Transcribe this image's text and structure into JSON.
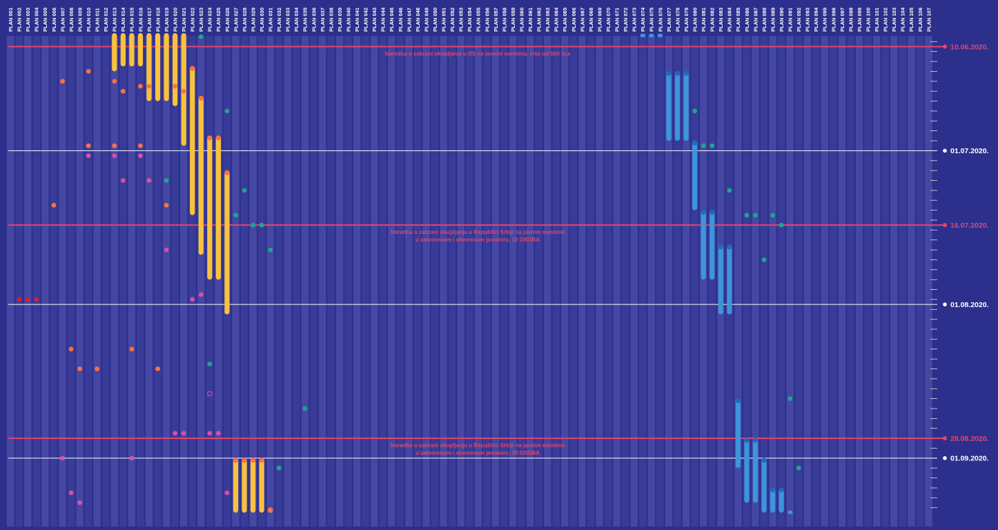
{
  "chart_data": {
    "type": "timeline",
    "plans": [
      "PLAN 001",
      "PLAN 002",
      "PLAN 003",
      "PLAN 004",
      "PLAN 005",
      "PLAN 006",
      "PLAN 007",
      "PLAN 008",
      "PLAN 009",
      "PLAN 010",
      "PLAN 011",
      "PLAN 012",
      "PLAN 013",
      "PLAN 014",
      "PLAN 015",
      "PLAN 016",
      "PLAN 017",
      "PLAN 018",
      "PLAN 019",
      "PLAN 020",
      "PLAN 021",
      "PLAN 022",
      "PLAN 023",
      "PLAN 024",
      "PLAN 025",
      "PLAN 026",
      "PLAN 027",
      "PLAN 028",
      "PLAN 029",
      "PLAN 030",
      "PLAN 031",
      "PLAN 032",
      "PLAN 033",
      "PLAN 034",
      "PLAN 035",
      "PLAN 036",
      "PLAN 037",
      "PLAN 038",
      "PLAN 039",
      "PLAN 040",
      "PLAN 041",
      "PLAN 042",
      "PLAN 043",
      "PLAN 044",
      "PLAN 045",
      "PLAN 046",
      "PLAN 047",
      "PLAN 048",
      "PLAN 049",
      "PLAN 050",
      "PLAN 051",
      "PLAN 052",
      "PLAN 053",
      "PLAN 054",
      "PLAN 055",
      "PLAN 056",
      "PLAN 057",
      "PLAN 058",
      "PLAN 059",
      "PLAN 060",
      "PLAN 061",
      "PLAN 062",
      "PLAN 063",
      "PLAN 064",
      "PLAN 065",
      "PLAN 066",
      "PLAN 067",
      "PLAN 068",
      "PLAN 069",
      "PLAN 070",
      "PLAN 071",
      "PLAN 072",
      "PLAN 073",
      "PLAN 074",
      "PLAN 075",
      "PLAN 076",
      "PLAN 077",
      "PLAN 078",
      "PLAN 079",
      "PLAN 080",
      "PLAN 081",
      "PLAN 082",
      "PLAN 083",
      "PLAN 084",
      "PLAN 085",
      "PLAN 086",
      "PLAN 087",
      "PLAN 088",
      "PLAN 089",
      "PLAN 090",
      "PLAN 091",
      "PLAN 092",
      "PLAN 093",
      "PLAN 094",
      "PLAN 095",
      "PLAN 096",
      "PLAN 097",
      "PLAN 098",
      "PLAN 099",
      "PLAN 100",
      "PLAN 101",
      "PLAN 102",
      "PLAN 103",
      "PLAN 104",
      "PLAN 105",
      "PLAN 106",
      "PLAN 107"
    ],
    "date_axis": {
      "start": "2020-06-05",
      "end": "2020-09-12",
      "white_dates": [
        {
          "date": "2020-07-01",
          "label": "01.07.2020."
        },
        {
          "date": "2020-08-01",
          "label": "01.08.2020."
        },
        {
          "date": "2020-09-01",
          "label": "01.09.2020."
        }
      ]
    },
    "regulations": [
      {
        "date": "2020-06-10",
        "label": "10.06.2020.",
        "text": [
          "Naredba o zabrani okupljanja u RS na javnim mestima, više od 500 lica"
        ]
      },
      {
        "date": "2020-07-16",
        "label": "16.07.2020.",
        "text": [
          "Naredba o zabrani okupljanja u Republici Srbiji na javnim mestima",
          "u zatvorenom i otvorenom prostoru, 10 OSOBA"
        ]
      },
      {
        "date": "2020-08-28",
        "label": "28.08.2020.",
        "text": [
          "Naredba o zabrani okupljanja u Republici Srbiji na javnim mestima",
          "u zatvorenom i otvorenom prostoru, 30 OSOBA"
        ]
      }
    ],
    "colors": {
      "background": "#2d2f8c",
      "stripe_a": "#4547a3",
      "stripe_b": "#393b98",
      "white_line": "#ffffff",
      "regulation_line": "#e8436a",
      "yellow_range": "#f9c23c",
      "blue_range": "#3d95dc",
      "blue_cap": "#1f6bbf",
      "orange_point": "#ff7043",
      "pink_point": "#d94fa6",
      "teal_point": "#1aa690",
      "red_point": "#d1203a"
    },
    "ranges": [
      {
        "plan": "PLAN 013",
        "start": "2020-06-05",
        "end": "2020-06-15",
        "color": "yellow"
      },
      {
        "plan": "PLAN 014",
        "start": "2020-06-05",
        "end": "2020-06-14",
        "color": "yellow"
      },
      {
        "plan": "PLAN 015",
        "start": "2020-06-05",
        "end": "2020-06-14",
        "color": "yellow"
      },
      {
        "plan": "PLAN 016",
        "start": "2020-06-05",
        "end": "2020-06-14",
        "color": "yellow"
      },
      {
        "plan": "PLAN 017",
        "start": "2020-06-05",
        "end": "2020-06-21",
        "color": "yellow"
      },
      {
        "plan": "PLAN 018",
        "start": "2020-06-05",
        "end": "2020-06-21",
        "color": "yellow"
      },
      {
        "plan": "PLAN 019",
        "start": "2020-06-05",
        "end": "2020-06-21",
        "color": "yellow"
      },
      {
        "plan": "PLAN 020",
        "start": "2020-06-05",
        "end": "2020-06-22",
        "color": "yellow"
      },
      {
        "plan": "PLAN 021",
        "start": "2020-06-05",
        "end": "2020-06-30",
        "color": "yellow"
      },
      {
        "plan": "PLAN 022",
        "start": "2020-06-14",
        "end": "2020-07-14",
        "color": "yellow"
      },
      {
        "plan": "PLAN 023",
        "start": "2020-06-20",
        "end": "2020-07-22",
        "color": "yellow"
      },
      {
        "plan": "PLAN 024",
        "start": "2020-06-28",
        "end": "2020-07-27",
        "color": "yellow"
      },
      {
        "plan": "PLAN 025",
        "start": "2020-06-28",
        "end": "2020-07-27",
        "color": "yellow"
      },
      {
        "plan": "PLAN 026",
        "start": "2020-07-05",
        "end": "2020-08-03",
        "color": "yellow"
      },
      {
        "plan": "PLAN 027",
        "start": "2020-09-01",
        "end": "2020-09-12",
        "color": "yellow"
      },
      {
        "plan": "PLAN 028",
        "start": "2020-09-01",
        "end": "2020-09-12",
        "color": "yellow"
      },
      {
        "plan": "PLAN 029",
        "start": "2020-09-01",
        "end": "2020-09-12",
        "color": "yellow"
      },
      {
        "plan": "PLAN 030",
        "start": "2020-09-01",
        "end": "2020-09-12",
        "color": "yellow"
      },
      {
        "plan": "PLAN 031",
        "start": "2020-09-11",
        "end": "2020-09-12",
        "color": "yellow"
      },
      {
        "plan": "PLAN 077",
        "start": "2020-06-15",
        "end": "2020-06-29",
        "color": "blue"
      },
      {
        "plan": "PLAN 078",
        "start": "2020-06-15",
        "end": "2020-06-29",
        "color": "blue"
      },
      {
        "plan": "PLAN 079",
        "start": "2020-06-15",
        "end": "2020-06-29",
        "color": "blue"
      },
      {
        "plan": "PLAN 080",
        "start": "2020-06-29",
        "end": "2020-07-13",
        "color": "blue"
      },
      {
        "plan": "PLAN 081",
        "start": "2020-07-13",
        "end": "2020-07-27",
        "color": "blue"
      },
      {
        "plan": "PLAN 082",
        "start": "2020-07-13",
        "end": "2020-07-27",
        "color": "blue"
      },
      {
        "plan": "PLAN 083",
        "start": "2020-07-20",
        "end": "2020-08-03",
        "color": "blue"
      },
      {
        "plan": "PLAN 084",
        "start": "2020-07-20",
        "end": "2020-08-03",
        "color": "blue"
      },
      {
        "plan": "PLAN 085",
        "start": "2020-08-20",
        "end": "2020-09-03",
        "color": "blue"
      },
      {
        "plan": "PLAN 086",
        "start": "2020-08-28",
        "end": "2020-09-10",
        "color": "blue"
      },
      {
        "plan": "PLAN 087",
        "start": "2020-08-28",
        "end": "2020-09-10",
        "color": "blue"
      },
      {
        "plan": "PLAN 088",
        "start": "2020-09-01",
        "end": "2020-09-12",
        "color": "blue"
      },
      {
        "plan": "PLAN 089",
        "start": "2020-09-07",
        "end": "2020-09-12",
        "color": "blue"
      },
      {
        "plan": "PLAN 090",
        "start": "2020-09-07",
        "end": "2020-09-12",
        "color": "blue"
      }
    ],
    "points": [
      {
        "plan": "PLAN 002",
        "date": "2020-07-31",
        "color": "red"
      },
      {
        "plan": "PLAN 003",
        "date": "2020-07-31",
        "color": "red"
      },
      {
        "plan": "PLAN 004",
        "date": "2020-07-31",
        "color": "red"
      },
      {
        "plan": "PLAN 006",
        "date": "2020-07-12",
        "color": "orange"
      },
      {
        "plan": "PLAN 007",
        "date": "2020-06-17",
        "color": "orange"
      },
      {
        "plan": "PLAN 008",
        "date": "2020-08-10",
        "color": "orange"
      },
      {
        "plan": "PLAN 009",
        "date": "2020-08-14",
        "color": "orange"
      },
      {
        "plan": "PLAN 011",
        "date": "2020-08-14",
        "color": "orange"
      },
      {
        "plan": "PLAN 010",
        "date": "2020-06-15",
        "color": "orange"
      },
      {
        "plan": "PLAN 010",
        "date": "2020-06-30",
        "color": "orange"
      },
      {
        "plan": "PLAN 013",
        "date": "2020-06-30",
        "color": "orange"
      },
      {
        "plan": "PLAN 013",
        "date": "2020-06-17",
        "color": "orange"
      },
      {
        "plan": "PLAN 014",
        "date": "2020-06-19",
        "color": "orange"
      },
      {
        "plan": "PLAN 015",
        "date": "2020-08-10",
        "color": "orange"
      },
      {
        "plan": "PLAN 016",
        "date": "2020-06-18",
        "color": "orange"
      },
      {
        "plan": "PLAN 016",
        "date": "2020-06-30",
        "color": "orange"
      },
      {
        "plan": "PLAN 017",
        "date": "2020-06-18",
        "color": "orange"
      },
      {
        "plan": "PLAN 018",
        "date": "2020-08-14",
        "color": "orange"
      },
      {
        "plan": "PLAN 019",
        "date": "2020-07-12",
        "color": "orange"
      },
      {
        "plan": "PLAN 020",
        "date": "2020-06-18",
        "color": "orange"
      },
      {
        "plan": "PLAN 021",
        "date": "2020-06-19",
        "color": "orange"
      },
      {
        "plan": "PLAN 007",
        "date": "2020-09-01",
        "color": "pink"
      },
      {
        "plan": "PLAN 008",
        "date": "2020-09-08",
        "color": "pink"
      },
      {
        "plan": "PLAN 009",
        "date": "2020-09-10",
        "color": "pink"
      },
      {
        "plan": "PLAN 010",
        "date": "2020-07-02",
        "color": "pink"
      },
      {
        "plan": "PLAN 013",
        "date": "2020-07-02",
        "color": "pink"
      },
      {
        "plan": "PLAN 014",
        "date": "2020-07-07",
        "color": "pink"
      },
      {
        "plan": "PLAN 015",
        "date": "2020-09-01",
        "color": "pink"
      },
      {
        "plan": "PLAN 016",
        "date": "2020-07-02",
        "color": "pink"
      },
      {
        "plan": "PLAN 017",
        "date": "2020-07-07",
        "color": "pink"
      },
      {
        "plan": "PLAN 019",
        "date": "2020-07-21",
        "color": "pink"
      },
      {
        "plan": "PLAN 020",
        "date": "2020-08-27",
        "color": "pink"
      },
      {
        "plan": "PLAN 021",
        "date": "2020-08-27",
        "color": "pink"
      },
      {
        "plan": "PLAN 022",
        "date": "2020-07-31",
        "color": "pink"
      },
      {
        "plan": "PLAN 023",
        "date": "2020-07-30",
        "color": "pink"
      },
      {
        "plan": "PLAN 024",
        "date": "2020-08-27",
        "color": "pink"
      },
      {
        "plan": "PLAN 024",
        "date": "2020-08-19",
        "color": "pink-outline"
      },
      {
        "plan": "PLAN 025",
        "date": "2020-08-27",
        "color": "pink"
      },
      {
        "plan": "PLAN 026",
        "date": "2020-09-08",
        "color": "pink"
      },
      {
        "plan": "PLAN 023",
        "date": "2020-06-08",
        "color": "teal"
      },
      {
        "plan": "PLAN 019",
        "date": "2020-07-07",
        "color": "teal"
      },
      {
        "plan": "PLAN 024",
        "date": "2020-08-13",
        "color": "teal"
      },
      {
        "plan": "PLAN 026",
        "date": "2020-06-23",
        "color": "teal"
      },
      {
        "plan": "PLAN 027",
        "date": "2020-07-14",
        "color": "teal"
      },
      {
        "plan": "PLAN 028",
        "date": "2020-07-09",
        "color": "teal"
      },
      {
        "plan": "PLAN 029",
        "date": "2020-07-16",
        "color": "teal"
      },
      {
        "plan": "PLAN 030",
        "date": "2020-07-16",
        "color": "teal"
      },
      {
        "plan": "PLAN 031",
        "date": "2020-07-21",
        "color": "teal"
      },
      {
        "plan": "PLAN 032",
        "date": "2020-09-03",
        "color": "teal"
      },
      {
        "plan": "PLAN 035",
        "date": "2020-08-22",
        "color": "teal"
      },
      {
        "plan": "PLAN 080",
        "date": "2020-06-23",
        "color": "teal"
      },
      {
        "plan": "PLAN 081",
        "date": "2020-06-30",
        "color": "teal"
      },
      {
        "plan": "PLAN 082",
        "date": "2020-06-30",
        "color": "teal"
      },
      {
        "plan": "PLAN 084",
        "date": "2020-07-09",
        "color": "teal"
      },
      {
        "plan": "PLAN 086",
        "date": "2020-07-14",
        "color": "teal"
      },
      {
        "plan": "PLAN 087",
        "date": "2020-07-14",
        "color": "teal"
      },
      {
        "plan": "PLAN 088",
        "date": "2020-07-23",
        "color": "teal"
      },
      {
        "plan": "PLAN 089",
        "date": "2020-07-14",
        "color": "teal"
      },
      {
        "plan": "PLAN 090",
        "date": "2020-07-16",
        "color": "teal"
      },
      {
        "plan": "PLAN 091",
        "date": "2020-08-20",
        "color": "teal"
      },
      {
        "plan": "PLAN 092",
        "date": "2020-09-03",
        "color": "teal"
      },
      {
        "plan": "PLAN 074",
        "date": "2020-06-05",
        "color": "blue"
      },
      {
        "plan": "PLAN 075",
        "date": "2020-06-05",
        "color": "blue"
      },
      {
        "plan": "PLAN 076",
        "date": "2020-06-05",
        "color": "blue"
      },
      {
        "plan": "PLAN 091",
        "date": "2020-09-12",
        "color": "blue"
      }
    ]
  }
}
